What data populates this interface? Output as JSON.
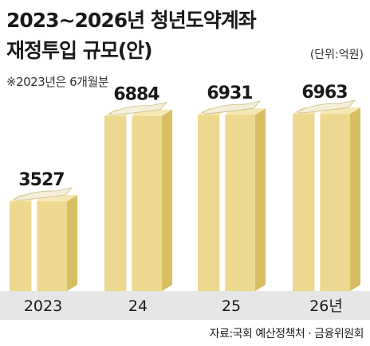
{
  "header": {
    "title_line1": "2023~2026년 청년도약계좌",
    "title_line2": "재정투입 규모(안)",
    "unit": "(단위:억원)",
    "note": "※2023년은 6개월분"
  },
  "footer": {
    "source": "자료:국회 예산정책처 · 금융위원회"
  },
  "colors": {
    "box_front": "#ecd98f",
    "box_side": "#d8be63",
    "box_top": "#f5e8b4",
    "ribbon": "#ffffff",
    "paper": "#f4efd9",
    "axis_band": "#e6e6e6",
    "value_text": "#1a1a1a"
  },
  "chart_data": {
    "type": "bar",
    "categories": [
      "2023",
      "24",
      "25",
      "26년"
    ],
    "values": [
      3527,
      6884,
      6931,
      6963
    ],
    "value_labels": [
      "3527",
      "6884",
      "6931",
      "6963"
    ],
    "ylim": [
      0,
      7000
    ],
    "grid": false,
    "legend": "none"
  }
}
